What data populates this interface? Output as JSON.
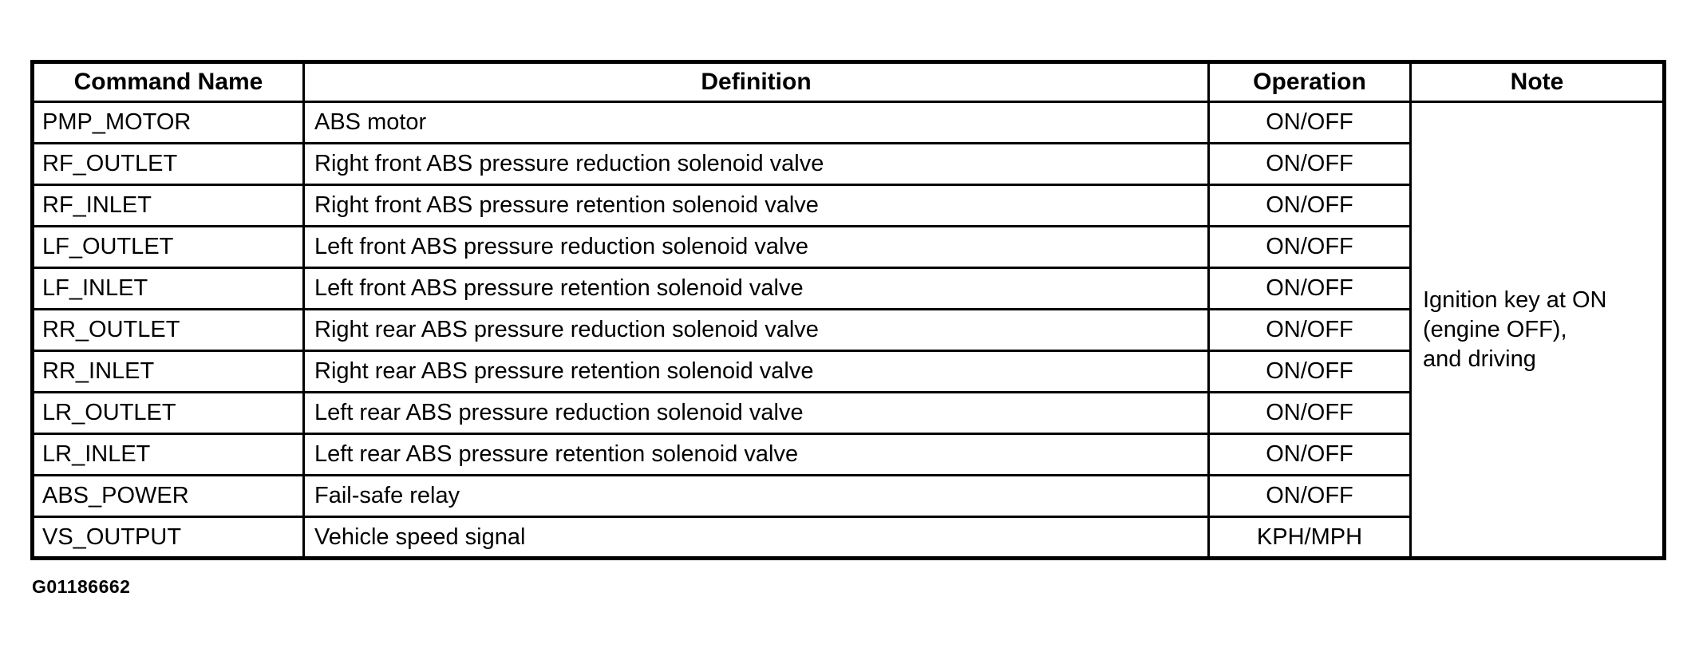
{
  "page": {
    "background": "#ffffff",
    "ink": "#000000"
  },
  "figure_id": "G01186662",
  "table": {
    "headers": [
      "Command Name",
      "Definition",
      "Operation",
      "Note"
    ],
    "rows": [
      {
        "command": "PMP_MOTOR",
        "definition": "ABS motor",
        "operation": "ON/OFF"
      },
      {
        "command": "RF_OUTLET",
        "definition": "Right front ABS pressure reduction solenoid valve",
        "operation": "ON/OFF"
      },
      {
        "command": "RF_INLET",
        "definition": "Right front ABS pressure retention solenoid valve",
        "operation": "ON/OFF"
      },
      {
        "command": "LF_OUTLET",
        "definition": "Left front ABS pressure reduction solenoid valve",
        "operation": "ON/OFF"
      },
      {
        "command": "LF_INLET",
        "definition": "Left front ABS pressure retention solenoid valve",
        "operation": "ON/OFF"
      },
      {
        "command": "RR_OUTLET",
        "definition": "Right rear ABS pressure reduction solenoid valve",
        "operation": "ON/OFF"
      },
      {
        "command": "RR_INLET",
        "definition": "Right rear ABS pressure retention solenoid valve",
        "operation": "ON/OFF"
      },
      {
        "command": "LR_OUTLET",
        "definition": "Left rear ABS pressure reduction solenoid valve",
        "operation": "ON/OFF"
      },
      {
        "command": "LR_INLET",
        "definition": "Left rear ABS pressure retention solenoid valve",
        "operation": "ON/OFF"
      },
      {
        "command": "ABS_POWER",
        "definition": "Fail-safe relay",
        "operation": "ON/OFF"
      },
      {
        "command": "VS_OUTPUT",
        "definition": "Vehicle speed signal",
        "operation": "KPH/MPH"
      }
    ],
    "note": {
      "text": "Ignition key at ON (engine OFF), and driving",
      "lines": [
        "Ignition key at ON",
        "(engine OFF),",
        "and driving"
      ]
    }
  }
}
